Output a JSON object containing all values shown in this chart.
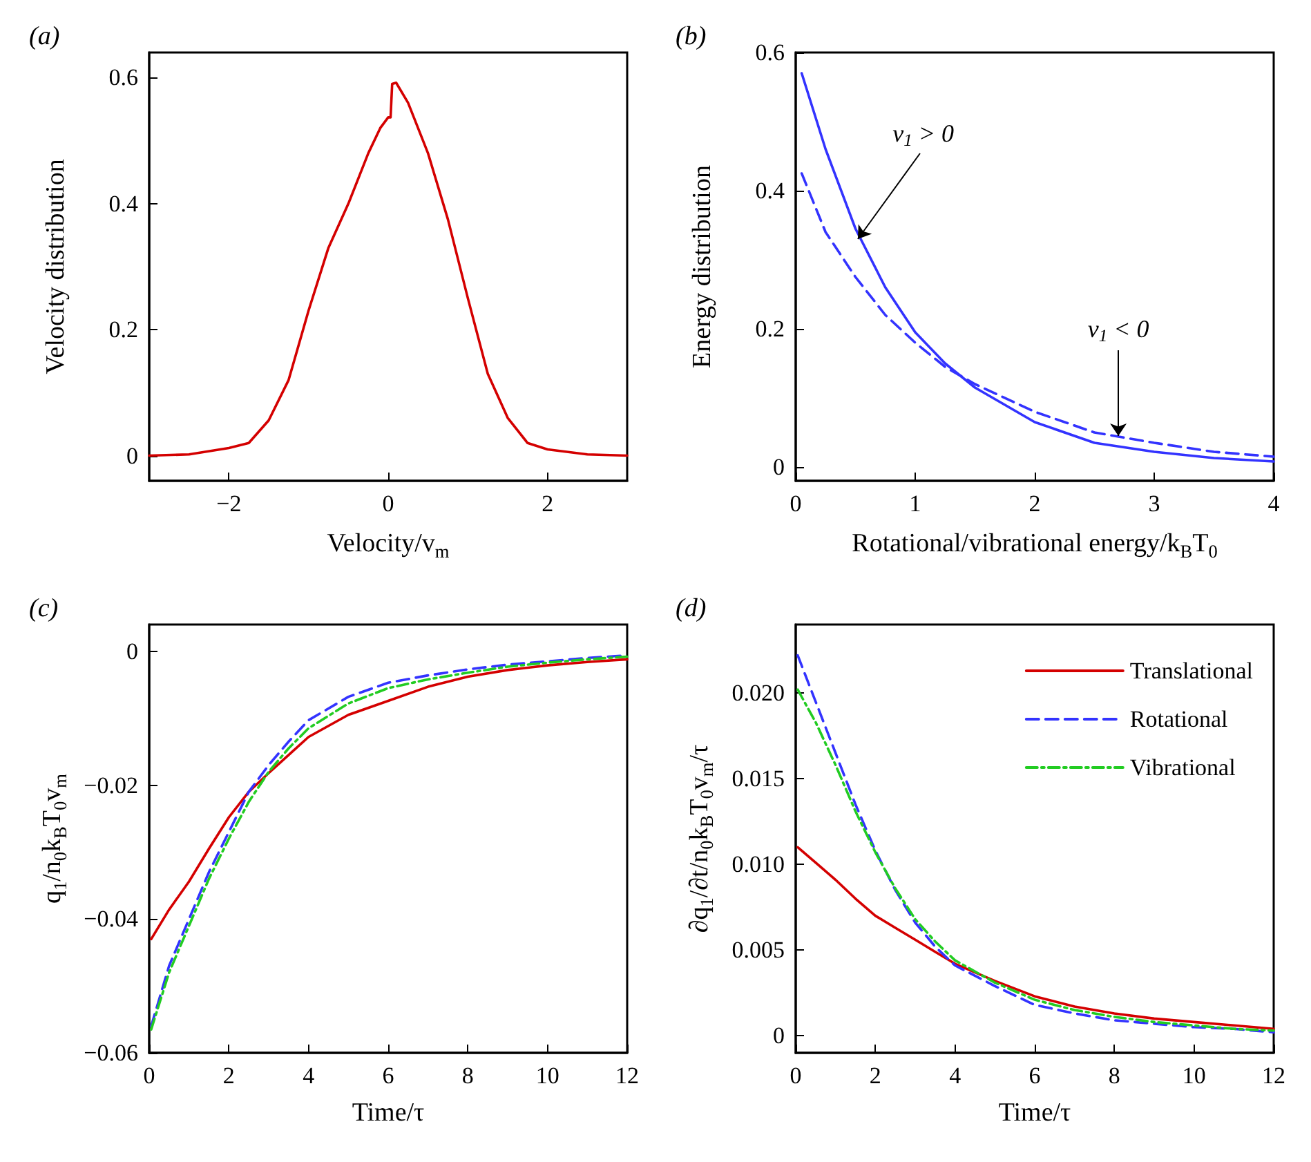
{
  "chart_data": [
    {
      "type": "line",
      "title": "(a)",
      "xlabel": "Velocity/v$_{m}$",
      "ylabel": "Velocity distribution",
      "xlim": [
        -3,
        3
      ],
      "xticks": [
        -2,
        0,
        2
      ],
      "ylim": [
        -0.04,
        0.64
      ],
      "yticks": [
        0,
        0.2,
        0.4,
        0.6
      ],
      "series": [
        {
          "color": "#d40000",
          "line_style": "solid",
          "x": [
            -3,
            -2.5,
            -2,
            -1.75,
            -1.5,
            -1.25,
            -1,
            -0.75,
            -0.5,
            -0.25,
            -0.1,
            0,
            0.03,
            0.05,
            0.1,
            0.25,
            0.5,
            0.75,
            1,
            1.25,
            1.5,
            1.75,
            2,
            2.5,
            3
          ],
          "values": [
            0,
            0.002,
            0.012,
            0.02,
            0.056,
            0.12,
            0.23,
            0.33,
            0.4,
            0.48,
            0.52,
            0.537,
            0.537,
            0.59,
            0.592,
            0.56,
            0.48,
            0.375,
            0.25,
            0.13,
            0.06,
            0.02,
            0.01,
            0.002,
            0
          ]
        }
      ]
    },
    {
      "type": "line",
      "title": "(b)",
      "xlabel": "Rotational/vibrational energy/k$_{B}$T$_{0}$",
      "ylabel": "Energy distribution",
      "xlim": [
        0,
        4
      ],
      "xticks": [
        0,
        1,
        2,
        3,
        4
      ],
      "ylim": [
        -0.02,
        0.6
      ],
      "yticks": [
        0,
        0.2,
        0.4,
        0.6
      ],
      "annotations": [
        {
          "text": "v$_{1}$ > 0",
          "x": 0.52,
          "y": 0.33
        },
        {
          "text": "v$_{1}$ < 0",
          "x": 2.7,
          "y": 0.045
        }
      ],
      "series": [
        {
          "color": "#3333ff",
          "line_style": "solid",
          "x": [
            0.05,
            0.25,
            0.5,
            0.75,
            1,
            1.25,
            1.5,
            2,
            2.5,
            3,
            3.5,
            4
          ],
          "values": [
            0.57,
            0.46,
            0.345,
            0.26,
            0.195,
            0.15,
            0.115,
            0.065,
            0.035,
            0.022,
            0.013,
            0.008
          ]
        },
        {
          "color": "#3333ff",
          "line_style": "dashed",
          "x": [
            0.05,
            0.25,
            0.5,
            0.75,
            1,
            1.25,
            1.5,
            2,
            2.5,
            3,
            3.5,
            4
          ],
          "values": [
            0.425,
            0.34,
            0.275,
            0.22,
            0.18,
            0.145,
            0.12,
            0.08,
            0.05,
            0.035,
            0.022,
            0.015
          ]
        }
      ]
    },
    {
      "type": "line",
      "title": "(c)",
      "xlabel": "Time/τ",
      "ylabel": "q$_{1}$/n$_{0}$k$_{B}$T$_{0}$v$_{m}$",
      "xlim": [
        0,
        12
      ],
      "xticks": [
        0,
        2,
        4,
        6,
        8,
        10,
        12
      ],
      "ylim": [
        -0.06,
        0.004
      ],
      "yticks": [
        -0.06,
        -0.04,
        -0.02,
        0
      ],
      "series": [
        {
          "color": "#d40000",
          "line_style": "solid",
          "x": [
            0.05,
            0.5,
            1,
            1.5,
            2,
            2.5,
            3,
            3.5,
            4,
            5,
            6,
            7,
            8,
            9,
            10,
            11,
            12
          ],
          "values": [
            -0.043,
            -0.0386,
            -0.0344,
            -0.0295,
            -0.0248,
            -0.021,
            -0.0182,
            -0.0155,
            -0.0128,
            -0.0095,
            -0.0074,
            -0.0053,
            -0.0038,
            -0.0028,
            -0.0021,
            -0.0016,
            -0.0012
          ]
        },
        {
          "color": "#3333ff",
          "line_style": "dashed",
          "x": [
            0.05,
            0.5,
            1,
            1.5,
            2,
            2.5,
            3,
            3.5,
            4,
            5,
            6,
            7,
            8,
            9,
            10,
            11,
            12
          ],
          "values": [
            -0.056,
            -0.047,
            -0.04,
            -0.033,
            -0.027,
            -0.021,
            -0.017,
            -0.0135,
            -0.0103,
            -0.0068,
            -0.0047,
            -0.0036,
            -0.0027,
            -0.002,
            -0.0015,
            -0.001,
            -0.0006
          ]
        },
        {
          "color": "#22cc22",
          "line_style": "dashdot",
          "x": [
            0.05,
            0.5,
            1,
            1.5,
            2,
            2.5,
            3,
            3.5,
            4,
            5,
            6,
            7,
            8,
            9,
            10,
            11,
            12
          ],
          "values": [
            -0.0565,
            -0.048,
            -0.041,
            -0.034,
            -0.028,
            -0.0225,
            -0.018,
            -0.0145,
            -0.0115,
            -0.0078,
            -0.0055,
            -0.0042,
            -0.0032,
            -0.0023,
            -0.0017,
            -0.0012,
            -0.0008
          ]
        }
      ]
    },
    {
      "type": "line",
      "title": "(d)",
      "xlabel": "Time/τ",
      "ylabel": "∂q$_{1}$/∂t/n$_{0}$k$_{B}$T$_{0}$v$_{m}$/τ",
      "xlim": [
        0,
        12
      ],
      "xticks": [
        0,
        2,
        4,
        6,
        8,
        10,
        12
      ],
      "ylim": [
        -0.001,
        0.024
      ],
      "yticks": [
        0,
        {
          "value": 0.005,
          "label": "0.005"
        },
        {
          "value": 0.01,
          "label": "0.010"
        },
        {
          "value": 0.015,
          "label": "0.015"
        },
        {
          "value": 0.02,
          "label": "0.020"
        }
      ],
      "legend": "top right",
      "series": [
        {
          "name": "Translational",
          "color": "#d40000",
          "line_style": "solid",
          "x": [
            0.05,
            0.5,
            1,
            1.5,
            2,
            2.5,
            3,
            3.5,
            4,
            5,
            6,
            7,
            8,
            9,
            10,
            11,
            12
          ],
          "values": [
            0.011,
            0.0101,
            0.0091,
            0.008,
            0.007,
            0.0063,
            0.0056,
            0.0049,
            0.0042,
            0.0032,
            0.0023,
            0.0017,
            0.0013,
            0.001,
            0.0008,
            0.0006,
            0.0004
          ]
        },
        {
          "name": "Rotational",
          "color": "#3333ff",
          "line_style": "dashed",
          "x": [
            0.05,
            0.5,
            1,
            1.5,
            2,
            2.5,
            3,
            3.5,
            4,
            5,
            6,
            7,
            8,
            9,
            10,
            11,
            12
          ],
          "values": [
            0.0222,
            0.0195,
            0.0165,
            0.0135,
            0.0108,
            0.0085,
            0.0066,
            0.0052,
            0.0041,
            0.0029,
            0.0018,
            0.0013,
            0.0009,
            0.0007,
            0.0005,
            0.0004,
            0.0002
          ]
        },
        {
          "name": "Vibrational",
          "color": "#22cc22",
          "line_style": "dashdot",
          "x": [
            0.05,
            0.5,
            1,
            1.5,
            2,
            2.5,
            3,
            3.5,
            4,
            5,
            6,
            7,
            8,
            9,
            10,
            11,
            12
          ],
          "values": [
            0.0202,
            0.0183,
            0.0158,
            0.0131,
            0.0107,
            0.0086,
            0.0068,
            0.0055,
            0.0044,
            0.0031,
            0.0021,
            0.0015,
            0.0011,
            0.0008,
            0.0006,
            0.0004,
            0.0003
          ]
        }
      ]
    }
  ]
}
